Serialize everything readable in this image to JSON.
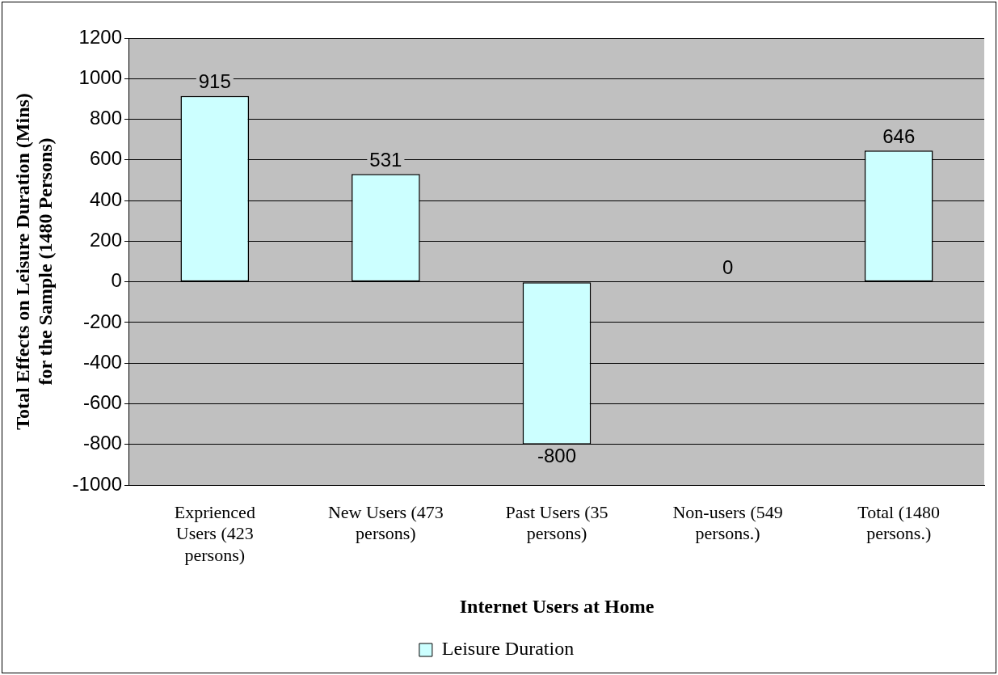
{
  "chart_data": {
    "type": "bar",
    "xlabel": "Internet Users at Home",
    "ylabel": "Total Effects on Leisure Duration (Mins) for the Sample (1480 Persons)",
    "categories": [
      "Exprienced Users (423 persons)",
      "New Users (473 persons)",
      "Past Users (35 persons)",
      "Non-users (549 persons.)",
      "Total (1480 persons.)"
    ],
    "series": [
      {
        "name": "Leisure Duration",
        "color": "#ccffff",
        "values": [
          915,
          531,
          -800,
          0,
          646
        ]
      }
    ],
    "ylim": [
      -1000,
      1200
    ],
    "yticks": [
      -1000,
      -800,
      -600,
      -400,
      -200,
      0,
      200,
      400,
      600,
      800,
      1000,
      1200
    ],
    "grid": "y",
    "legend": "bottom",
    "data_labels": true
  }
}
